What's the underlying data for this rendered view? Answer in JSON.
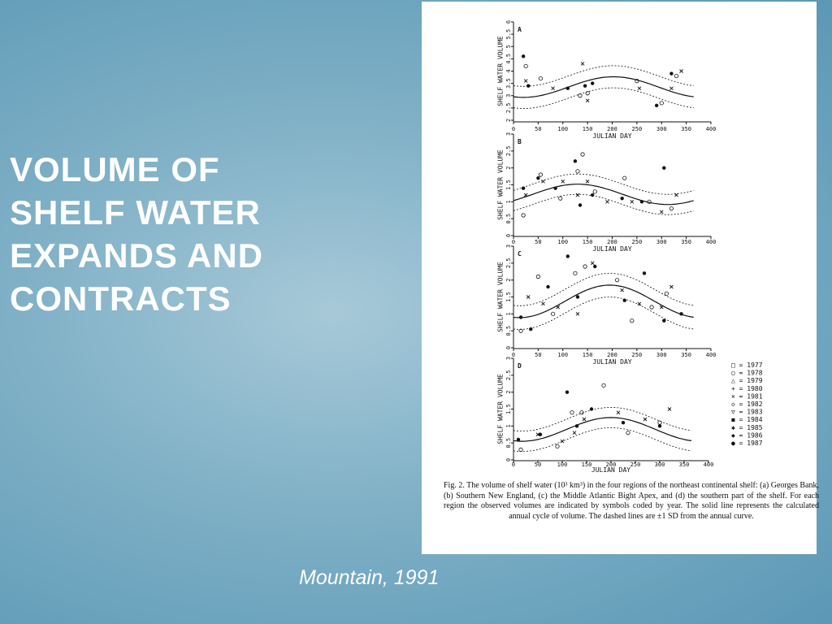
{
  "slide": {
    "title": "VOLUME OF SHELF WATER EXPANDS AND CONTRACTS",
    "citation": "Mountain, 1991"
  },
  "figure": {
    "y_label": "SHELF WATER VOLUME",
    "x_label": "JULIAN DAY",
    "xlim": [
      0,
      400
    ],
    "xticks": [
      0,
      50,
      100,
      150,
      200,
      250,
      300,
      350,
      400
    ],
    "panels": [
      {
        "label": "A",
        "ylim": [
          2,
          6
        ],
        "yticks": [
          2,
          2.5,
          3,
          3.5,
          4,
          4.5,
          5,
          5.5,
          6
        ],
        "points": {
          "x": [
            20,
            25,
            25,
            30,
            55,
            80,
            110,
            135,
            140,
            145,
            150,
            150,
            160,
            250,
            255,
            290,
            300,
            320,
            320,
            330,
            340
          ],
          "y": [
            4.6,
            4.2,
            3.6,
            3.4,
            3.7,
            3.3,
            3.3,
            3.0,
            4.3,
            3.4,
            3.1,
            2.8,
            3.5,
            3.6,
            3.3,
            2.6,
            2.7,
            3.3,
            3.9,
            3.8,
            4.0
          ]
        }
      },
      {
        "label": "B",
        "ylim": [
          0,
          3
        ],
        "yticks": [
          0,
          0.5,
          1,
          1.5,
          2,
          2.5,
          3
        ],
        "points": {
          "x": [
            20,
            20,
            25,
            50,
            55,
            60,
            85,
            95,
            100,
            125,
            130,
            130,
            135,
            140,
            150,
            160,
            165,
            190,
            220,
            225,
            240,
            260,
            275,
            300,
            305,
            320,
            330
          ],
          "y": [
            1.4,
            0.6,
            1.2,
            1.7,
            1.8,
            1.6,
            1.4,
            1.1,
            1.6,
            2.2,
            1.9,
            1.2,
            0.9,
            2.4,
            1.6,
            1.2,
            1.3,
            1.0,
            1.1,
            1.7,
            1.0,
            1.0,
            1.0,
            0.7,
            2.0,
            0.8,
            1.2
          ]
        }
      },
      {
        "label": "C",
        "ylim": [
          0,
          3
        ],
        "yticks": [
          0,
          0.5,
          1,
          1.5,
          2,
          2.5,
          3
        ],
        "points": {
          "x": [
            15,
            15,
            30,
            35,
            50,
            60,
            70,
            80,
            90,
            110,
            125,
            130,
            130,
            145,
            160,
            165,
            210,
            220,
            225,
            240,
            255,
            265,
            280,
            300,
            305,
            310,
            320,
            340
          ],
          "y": [
            0.9,
            0.5,
            1.5,
            0.55,
            2.1,
            1.3,
            1.8,
            1.0,
            1.2,
            2.7,
            2.2,
            1.0,
            1.5,
            2.4,
            2.5,
            2.4,
            2.0,
            1.7,
            1.4,
            0.8,
            1.3,
            2.2,
            1.2,
            1.2,
            0.8,
            1.6,
            1.8,
            1.0
          ]
        }
      },
      {
        "label": "D",
        "ylim": [
          0,
          3
        ],
        "yticks": [
          0,
          0.5,
          1,
          1.5,
          2,
          2.5,
          3
        ],
        "points": {
          "x": [
            10,
            15,
            50,
            55,
            90,
            100,
            110,
            120,
            125,
            130,
            140,
            145,
            160,
            185,
            215,
            225,
            235,
            270,
            300,
            300,
            320
          ],
          "y": [
            0.6,
            0.3,
            0.75,
            0.75,
            0.4,
            0.55,
            2.0,
            1.4,
            0.8,
            1.0,
            1.4,
            1.2,
            1.5,
            2.2,
            1.4,
            1.1,
            0.8,
            1.2,
            1.0,
            1.1,
            1.5
          ]
        }
      }
    ],
    "legend": [
      "□ = 1977",
      "○ = 1978",
      "△ = 1979",
      "+ = 1980",
      "× = 1981",
      "◇ = 1982",
      "▽ = 1983",
      "◼ = 1984",
      "✱ = 1985",
      "◆ = 1986",
      "● = 1987"
    ],
    "caption": "Fig. 2.   The volume of shelf water (10³ km³) in the four regions of the northeast continental shelf: (a) Georges Bank, (b) Southern New England, (c) the Middle Atlantic Bight Apex, and (d) the southern part of the shelf. For each region the observed volumes are indicated by symbols coded by year. The solid line represents the calculated annual cycle of volume. The dashed lines are ±1 SD from the annual curve."
  }
}
